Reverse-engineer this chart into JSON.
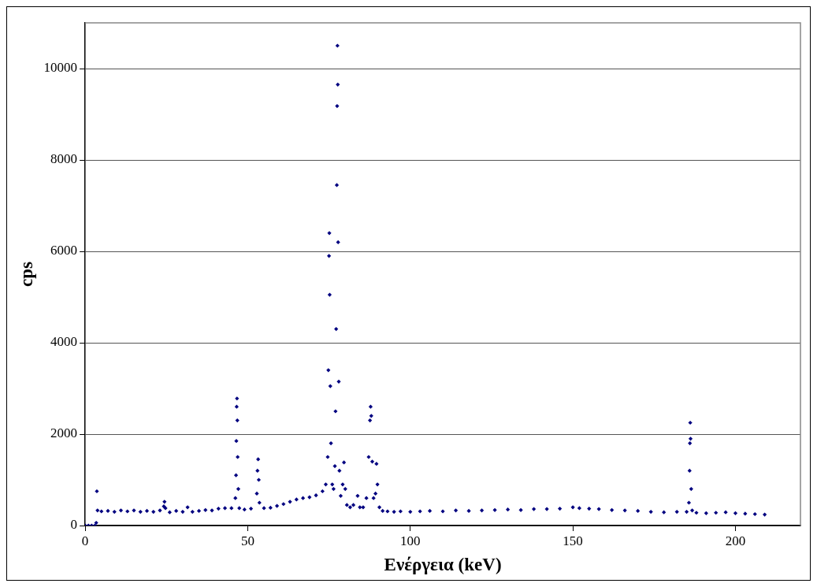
{
  "chart_data": {
    "type": "scatter",
    "xlabel": "Ενέργεια (keV)",
    "ylabel": "cps",
    "xlim": [
      0,
      220
    ],
    "xticks": [
      0,
      50,
      100,
      150,
      200
    ],
    "ylim": [
      0,
      11000
    ],
    "yticks": [
      0,
      2000,
      4000,
      6000,
      8000,
      10000
    ],
    "grid": "y",
    "marker": "diamond",
    "series": [
      {
        "color": "#000080",
        "x": [
          0,
          1,
          2,
          3,
          3.4,
          3.6,
          3.8,
          5,
          7,
          9,
          11,
          13,
          15,
          17,
          19,
          21,
          23,
          24.2,
          24.4,
          24.7,
          26,
          28,
          30,
          31.5,
          33,
          35,
          37,
          39,
          41,
          43,
          45,
          46.2,
          46.4,
          46.5,
          46.6,
          46.7,
          46.8,
          46.9,
          47.1,
          47.4,
          49,
          51,
          52.8,
          53.0,
          53.2,
          53.4,
          53.6,
          55,
          57,
          59,
          61,
          63,
          65,
          67,
          69,
          71,
          73,
          74,
          74.6,
          74.8,
          75.0,
          75.1,
          75.2,
          75.4,
          75.6,
          76,
          76.4,
          76.8,
          77.0,
          77.2,
          77.4,
          77.5,
          77.6,
          77.7,
          77.8,
          78.0,
          78.2,
          78.6,
          79.2,
          79.6,
          80,
          80.5,
          81.5,
          82.5,
          83.8,
          84.5,
          85.5,
          86.5,
          87.2,
          87.6,
          87.8,
          88.0,
          88.3,
          88.7,
          89.3,
          89.6,
          89.9,
          90.5,
          91.5,
          93,
          95,
          97,
          100,
          103,
          106,
          110,
          114,
          118,
          122,
          126,
          130,
          134,
          138,
          142,
          146,
          150,
          152,
          155,
          158,
          162,
          166,
          170,
          174,
          178,
          182,
          185,
          185.7,
          185.9,
          186.0,
          186.1,
          186.2,
          186.4,
          186.7,
          188,
          191,
          194,
          197,
          200,
          203,
          206,
          209
        ],
        "values": [
          0,
          0,
          0,
          0,
          60,
          750,
          330,
          310,
          320,
          300,
          330,
          310,
          330,
          300,
          320,
          300,
          330,
          420,
          520,
          380,
          290,
          320,
          300,
          400,
          300,
          320,
          340,
          330,
          370,
          380,
          380,
          600,
          1100,
          1850,
          2600,
          2780,
          2300,
          1500,
          800,
          380,
          350,
          370,
          700,
          1200,
          1450,
          1000,
          500,
          380,
          390,
          430,
          470,
          520,
          570,
          600,
          620,
          660,
          750,
          900,
          1500,
          3400,
          5900,
          6400,
          5050,
          3050,
          1800,
          900,
          800,
          1300,
          2500,
          4300,
          7450,
          9180,
          10500,
          9650,
          6200,
          3150,
          1200,
          650,
          900,
          1380,
          800,
          450,
          400,
          450,
          650,
          400,
          400,
          600,
          1500,
          2300,
          2600,
          2400,
          1400,
          600,
          700,
          1350,
          900,
          400,
          320,
          310,
          300,
          310,
          300,
          310,
          320,
          310,
          330,
          320,
          330,
          340,
          350,
          340,
          360,
          360,
          370,
          400,
          380,
          370,
          360,
          340,
          330,
          320,
          300,
          290,
          300,
          300,
          500,
          1200,
          1800,
          2250,
          1900,
          800,
          330,
          280,
          270,
          280,
          290,
          270,
          260,
          250,
          240
        ]
      }
    ]
  }
}
